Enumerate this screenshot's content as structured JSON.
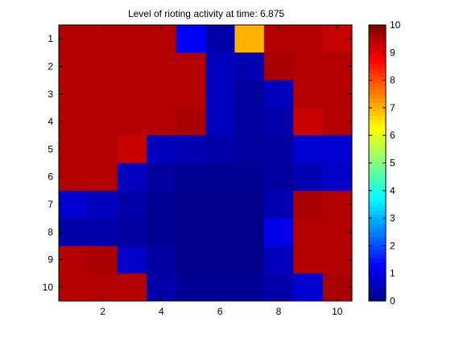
{
  "chart_data": {
    "type": "heatmap",
    "title": "Level of rioting activity at time: 6.875",
    "x": [
      1,
      2,
      3,
      4,
      5,
      6,
      7,
      8,
      9,
      10
    ],
    "y": [
      1,
      2,
      3,
      4,
      5,
      6,
      7,
      8,
      9,
      10
    ],
    "xlim": [
      0.5,
      10.5
    ],
    "ylim": [
      0.5,
      10.5
    ],
    "x_ticks": [
      2,
      4,
      6,
      8,
      10
    ],
    "y_ticks": [
      1,
      2,
      3,
      4,
      5,
      6,
      7,
      8,
      9,
      10
    ],
    "y_direction": "reverse",
    "colormap": "jet",
    "clim": [
      0,
      10
    ],
    "colorbar": {
      "location": "right",
      "ticks": [
        0,
        1,
        2,
        3,
        4,
        5,
        6,
        7,
        8,
        9,
        10
      ]
    },
    "grid": false,
    "values": [
      [
        9.5,
        9.5,
        9.5,
        9.5,
        1.2,
        0.4,
        7.0,
        9.5,
        9.5,
        9.3
      ],
      [
        9.5,
        9.5,
        9.5,
        9.5,
        9.5,
        0.6,
        0.5,
        9.6,
        9.5,
        9.5
      ],
      [
        9.5,
        9.5,
        9.5,
        9.5,
        9.5,
        0.6,
        0.3,
        0.6,
        9.5,
        9.5
      ],
      [
        9.5,
        9.5,
        9.5,
        9.5,
        9.6,
        0.6,
        0.3,
        0.4,
        9.3,
        9.5
      ],
      [
        9.5,
        9.5,
        9.3,
        0.6,
        0.5,
        0.4,
        0.3,
        0.3,
        0.8,
        0.8
      ],
      [
        9.5,
        9.5,
        0.6,
        0.3,
        0.2,
        0.2,
        0.2,
        0.3,
        0.5,
        0.7
      ],
      [
        0.8,
        0.6,
        0.4,
        0.2,
        0.1,
        0.1,
        0.1,
        0.5,
        9.6,
        9.5
      ],
      [
        0.4,
        0.4,
        0.3,
        0.2,
        0.1,
        0.1,
        0.1,
        1.0,
        9.5,
        9.5
      ],
      [
        9.5,
        9.6,
        0.7,
        0.3,
        0.1,
        0.1,
        0.1,
        0.6,
        9.5,
        9.5
      ],
      [
        9.5,
        9.5,
        9.5,
        0.4,
        0.2,
        0.2,
        0.2,
        0.4,
        0.8,
        9.6
      ]
    ]
  }
}
